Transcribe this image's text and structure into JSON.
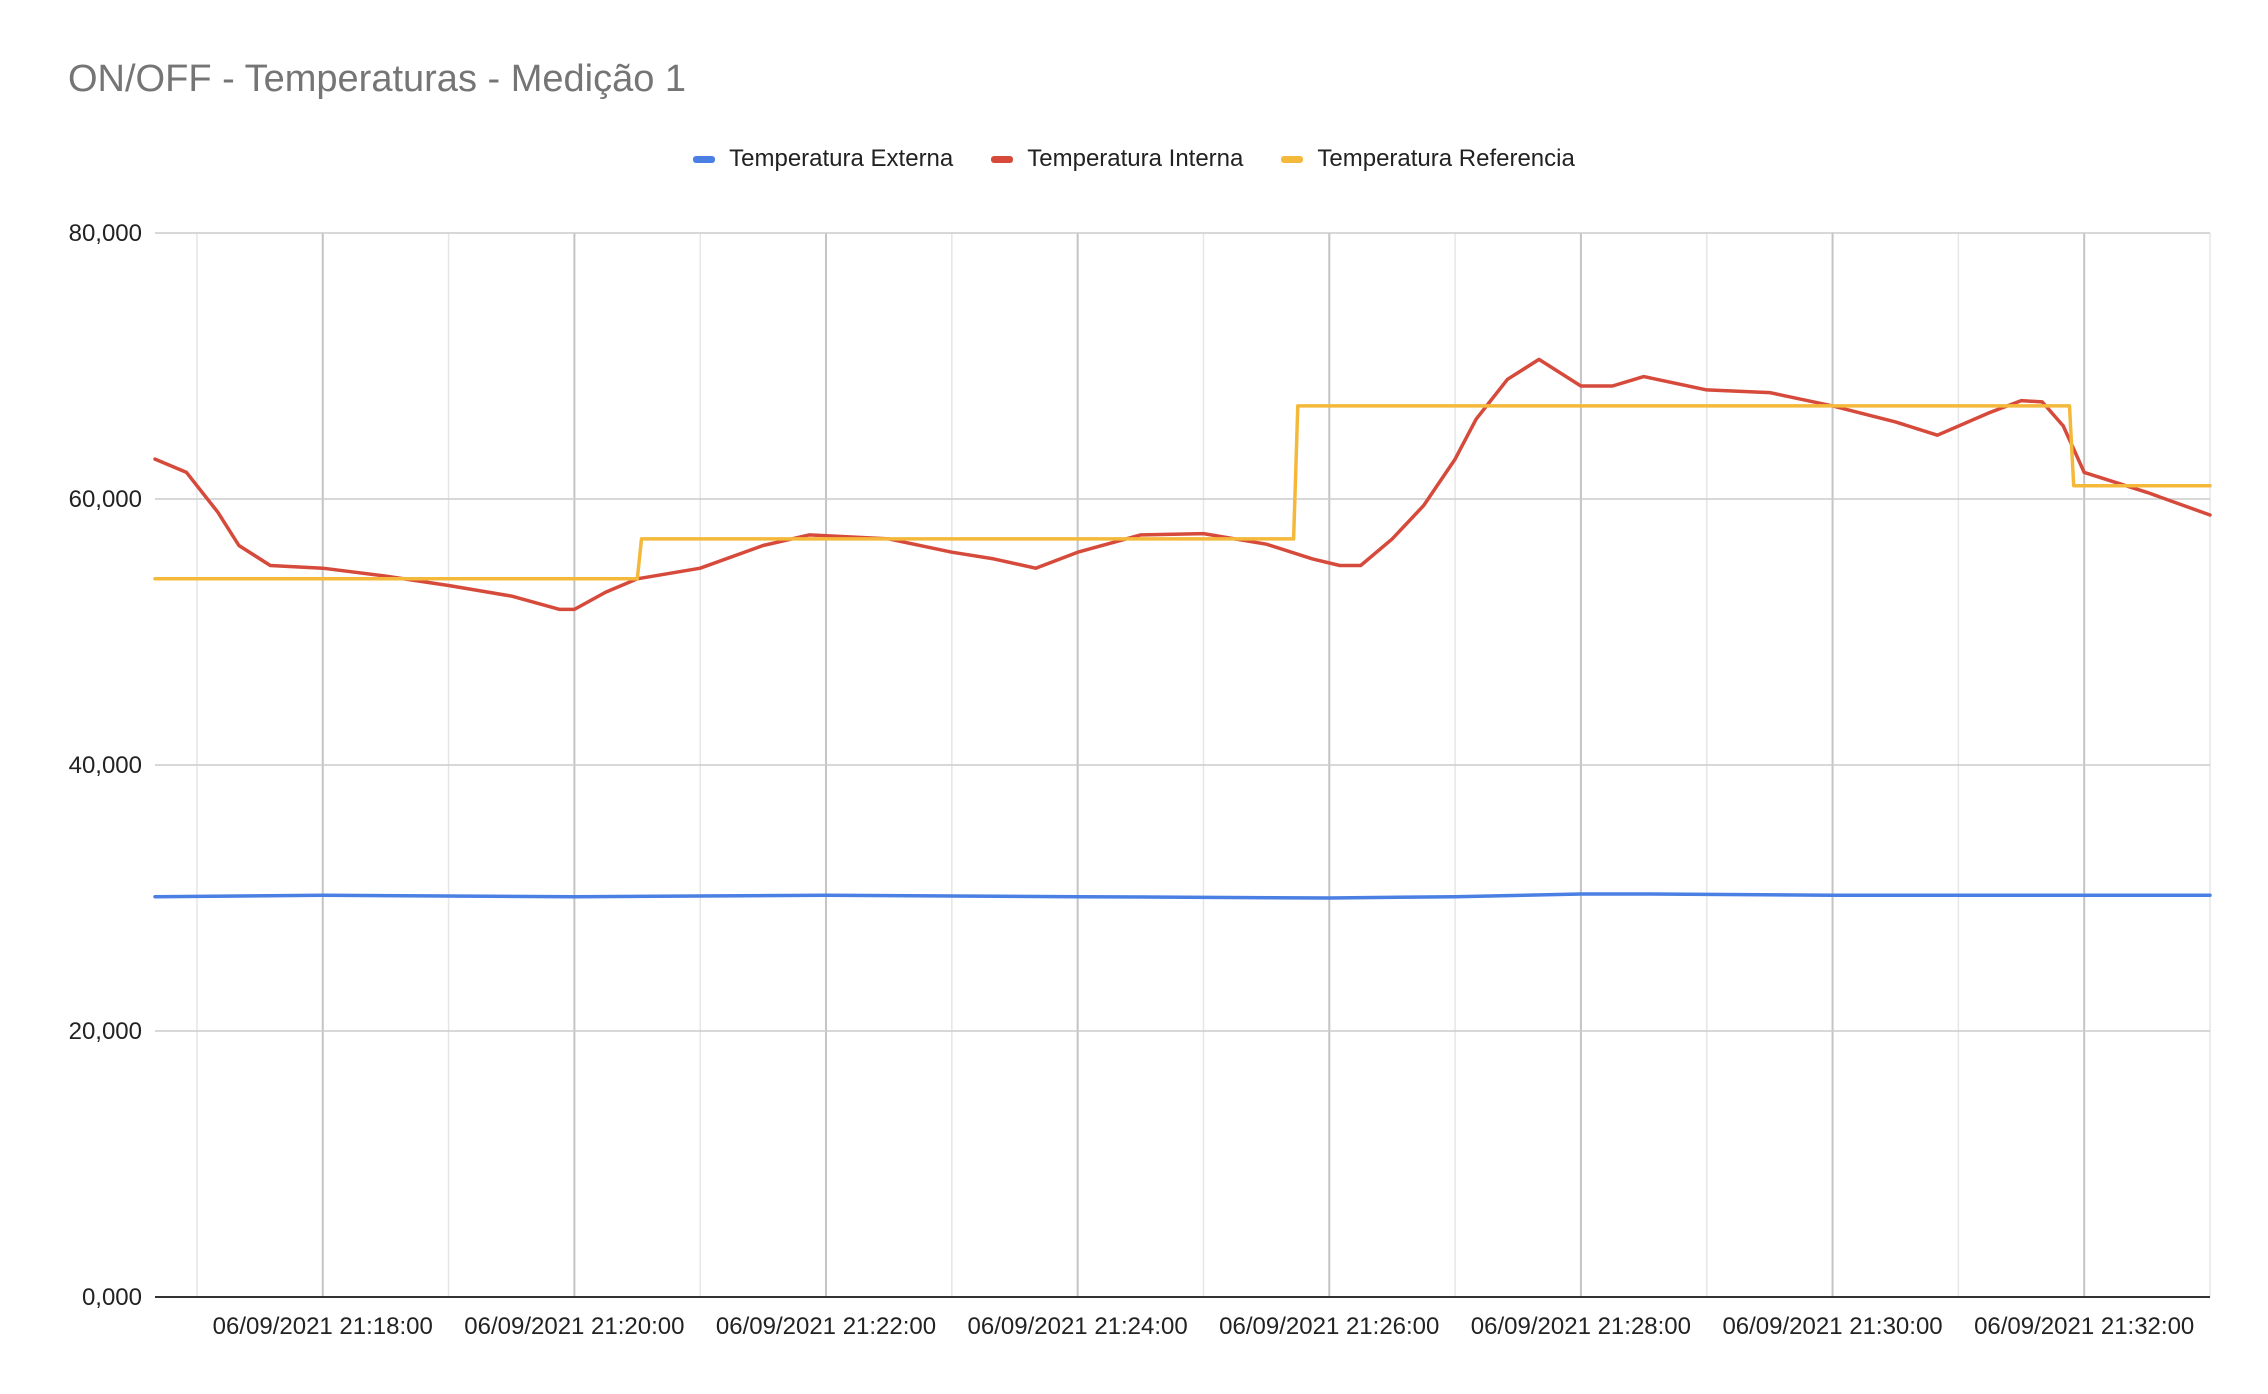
{
  "chart_data": {
    "type": "line",
    "title": "ON/OFF - Temperaturas - Medição 1",
    "xlabel": "",
    "ylabel": "",
    "x_range": [
      "06/09/2021 21:16:40",
      "06/09/2021 21:33:00"
    ],
    "ylim": [
      0,
      80000
    ],
    "y_ticks": [
      "0,000",
      "20,000",
      "40,000",
      "60,000",
      "80,000"
    ],
    "y_tick_values": [
      0,
      20000,
      40000,
      60000,
      80000
    ],
    "x_ticks": [
      "06/09/2021 21:18:00",
      "06/09/2021 21:20:00",
      "06/09/2021 21:22:00",
      "06/09/2021 21:24:00",
      "06/09/2021 21:26:00",
      "06/09/2021 21:28:00",
      "06/09/2021 21:30:00",
      "06/09/2021 21:32:00"
    ],
    "grid": true,
    "legend_position": "top-center",
    "series": [
      {
        "name": "Temperatura Externa",
        "color": "#4a7fe3",
        "x": [
          "06/09/2021 21:16:40",
          "06/09/2021 21:18:00",
          "06/09/2021 21:20:00",
          "06/09/2021 21:22:00",
          "06/09/2021 21:24:00",
          "06/09/2021 21:26:00",
          "06/09/2021 21:27:00",
          "06/09/2021 21:28:00",
          "06/09/2021 21:28:30",
          "06/09/2021 21:30:00",
          "06/09/2021 21:32:00",
          "06/09/2021 21:33:00"
        ],
        "values": [
          30100,
          30200,
          30100,
          30200,
          30100,
          30000,
          30100,
          30300,
          30300,
          30200,
          30200,
          30200
        ]
      },
      {
        "name": "Temperatura Interna",
        "color": "#d64a3b",
        "x": [
          "06/09/2021 21:16:40",
          "06/09/2021 21:16:55",
          "06/09/2021 21:17:10",
          "06/09/2021 21:17:20",
          "06/09/2021 21:17:35",
          "06/09/2021 21:18:00",
          "06/09/2021 21:18:30",
          "06/09/2021 21:19:00",
          "06/09/2021 21:19:30",
          "06/09/2021 21:19:53",
          "06/09/2021 21:20:00",
          "06/09/2021 21:20:15",
          "06/09/2021 21:20:30",
          "06/09/2021 21:21:00",
          "06/09/2021 21:21:30",
          "06/09/2021 21:21:52",
          "06/09/2021 21:22:30",
          "06/09/2021 21:23:00",
          "06/09/2021 21:23:20",
          "06/09/2021 21:23:40",
          "06/09/2021 21:24:00",
          "06/09/2021 21:24:30",
          "06/09/2021 21:25:00",
          "06/09/2021 21:25:30",
          "06/09/2021 21:25:52",
          "06/09/2021 21:26:05",
          "06/09/2021 21:26:15",
          "06/09/2021 21:26:30",
          "06/09/2021 21:26:45",
          "06/09/2021 21:27:00",
          "06/09/2021 21:27:10",
          "06/09/2021 21:27:25",
          "06/09/2021 21:27:40",
          "06/09/2021 21:28:00",
          "06/09/2021 21:28:15",
          "06/09/2021 21:28:30",
          "06/09/2021 21:29:00",
          "06/09/2021 21:29:30",
          "06/09/2021 21:30:00",
          "06/09/2021 21:30:30",
          "06/09/2021 21:30:50",
          "06/09/2021 21:31:15",
          "06/09/2021 21:31:30",
          "06/09/2021 21:31:40",
          "06/09/2021 21:31:50",
          "06/09/2021 21:32:00",
          "06/09/2021 21:32:30",
          "06/09/2021 21:33:00"
        ],
        "values": [
          63000,
          62000,
          59000,
          56500,
          55000,
          54800,
          54200,
          53500,
          52700,
          51700,
          51700,
          53000,
          54000,
          54800,
          56500,
          57300,
          57000,
          56000,
          55500,
          54800,
          56000,
          57300,
          57400,
          56600,
          55500,
          55000,
          55000,
          57000,
          59500,
          63000,
          66000,
          69000,
          70500,
          68500,
          68500,
          69200,
          68200,
          68000,
          67000,
          65800,
          64800,
          66500,
          67400,
          67300,
          65500,
          62000,
          60500,
          58800
        ]
      },
      {
        "name": "Temperatura Referencia",
        "color": "#f4b93a",
        "x": [
          "06/09/2021 21:16:40",
          "06/09/2021 21:20:30",
          "06/09/2021 21:20:32",
          "06/09/2021 21:25:43",
          "06/09/2021 21:25:45",
          "06/09/2021 21:31:53",
          "06/09/2021 21:31:55",
          "06/09/2021 21:33:00"
        ],
        "values": [
          54000,
          54000,
          57000,
          57000,
          67000,
          67000,
          61000,
          61000
        ]
      }
    ]
  }
}
